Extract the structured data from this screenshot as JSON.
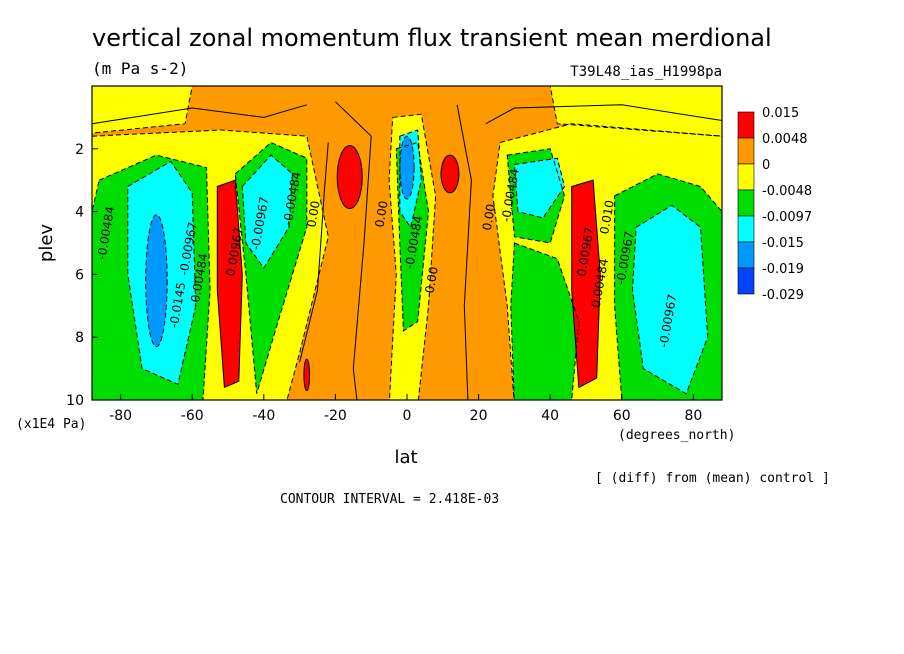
{
  "header": {
    "title": "vertical zonal momentum flux transient mean merdional",
    "units": "(m Pa s-2)",
    "run_id": "T39L48_ias_H1998pa"
  },
  "footer": {
    "y_units": "(x1E4 Pa)",
    "x_units": "(degrees_north)",
    "diff_note": "[ (diff) from (mean) control ]",
    "contour_interval": "CONTOUR INTERVAL = 2.418E-03"
  },
  "chart_data": {
    "type": "heatmap",
    "title": "vertical zonal momentum flux transient mean merdional",
    "xlabel": "lat",
    "ylabel": "plev",
    "xlim": [
      -88,
      88
    ],
    "ylim": [
      10,
      0
    ],
    "x_ticks": [
      -80,
      -60,
      -40,
      -20,
      0,
      20,
      40,
      60,
      80
    ],
    "y_ticks": [
      2,
      4,
      6,
      8,
      10
    ],
    "colorbar": {
      "levels": [
        "0.015",
        "0.0048",
        "0",
        "-0.0048",
        "-0.0097",
        "-0.015",
        "-0.019",
        "-0.029"
      ],
      "colors": [
        "#ff0000",
        "#ff9900",
        "#ffff00",
        "#00dd00",
        "#00ffff",
        "#0099ff",
        "#0044ff"
      ]
    },
    "contour_labels": [
      {
        "text": "-0.00484",
        "lat": -83,
        "plev": 4.7
      },
      {
        "text": "-0.0145",
        "lat": -63,
        "plev": 7.0
      },
      {
        "text": "-0.00967",
        "lat": -60,
        "plev": 5.2
      },
      {
        "text": "-0.00484",
        "lat": -57,
        "plev": 6.2
      },
      {
        "text": "0.00967",
        "lat": -47,
        "plev": 5.3
      },
      {
        "text": "-0.00967",
        "lat": -40,
        "plev": 4.4
      },
      {
        "text": "-0.00484",
        "lat": -31,
        "plev": 3.6
      },
      {
        "text": "0.00",
        "lat": -25,
        "plev": 4.1
      },
      {
        "text": "0.00",
        "lat": -6,
        "plev": 4.1
      },
      {
        "text": "-0.00484",
        "lat": 3,
        "plev": 5.0
      },
      {
        "text": "0.00",
        "lat": 8,
        "plev": 6.2
      },
      {
        "text": "0.00",
        "lat": 24,
        "plev": 4.2
      },
      {
        "text": "-0.00484",
        "lat": 30,
        "plev": 3.5
      },
      {
        "text": "0.00967",
        "lat": 51,
        "plev": 5.3
      },
      {
        "text": "0.00484",
        "lat": 55,
        "plev": 6.3
      },
      {
        "text": "0.010",
        "lat": 57,
        "plev": 4.2
      },
      {
        "text": "-0.00967",
        "lat": 62,
        "plev": 5.5
      },
      {
        "text": "-0.00967",
        "lat": 74,
        "plev": 7.5
      }
    ]
  }
}
